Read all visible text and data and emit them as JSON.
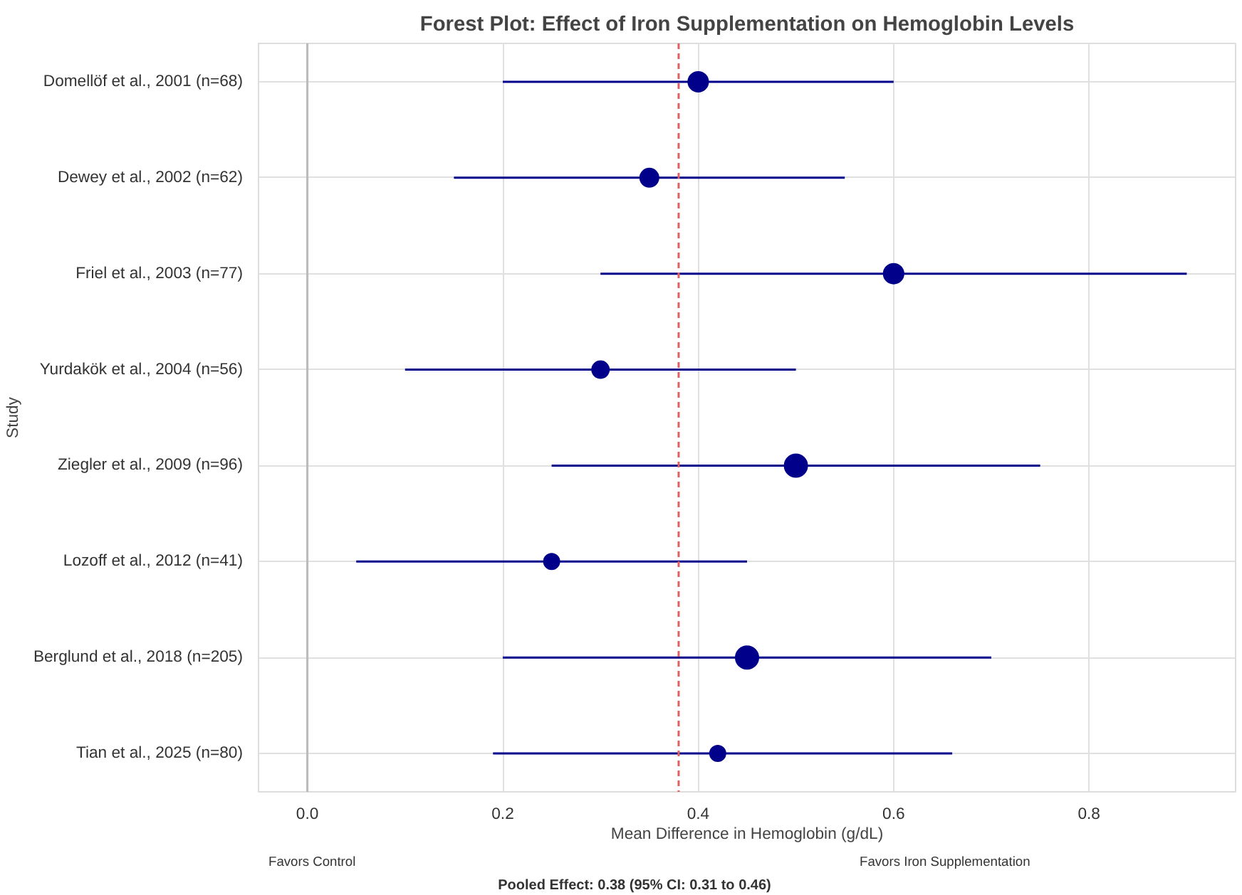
{
  "chart_data": {
    "type": "bubble",
    "orientation": "horizontal",
    "title": "Forest Plot: Effect of Iron Supplementation on Hemoglobin Levels",
    "xlabel": "Mean Difference in Hemoglobin (g/dL)",
    "ylabel": "Study",
    "categories": [
      "Domellöf et al., 2001 (n=68)",
      "Dewey et al., 2002 (n=62)",
      "Friel et al., 2003 (n=77)",
      "Yurdakök et al., 2004 (n=56)",
      "Ziegler et al., 2009 (n=96)",
      "Lozoff et al., 2012 (n=41)",
      "Berglund et al., 2018 (n=205)",
      "Tian et al., 2025 (n=80)"
    ],
    "series": [
      {
        "color": "#00008b",
        "values": [
          0.4,
          0.35,
          0.6,
          0.3,
          0.5,
          0.25,
          0.45,
          0.42
        ],
        "sizes": [
          0.77,
          0.66,
          0.77,
          0.56,
          1,
          0.47,
          1,
          0.47
        ],
        "errors": [
          [
            0.2,
            0.6
          ],
          [
            0.15,
            0.55
          ],
          [
            0.3,
            0.9
          ],
          [
            0.1,
            0.5
          ],
          [
            0.25,
            0.75
          ],
          [
            0.05,
            0.45
          ],
          [
            0.2,
            0.7
          ],
          [
            0.19,
            0.66
          ]
        ]
      }
    ],
    "xlim": [
      -0.05,
      0.95
    ],
    "xticks": [
      {
        "value": 0,
        "label": "0.0"
      },
      0.2,
      0.4,
      0.6,
      0.8
    ],
    "ref_lines": [
      {
        "axis": "x",
        "value": 0,
        "color": "#bbbbbb",
        "line_style": "solid"
      },
      {
        "axis": "x",
        "value": 0.38,
        "color": "#e06060",
        "line_style": "dashed"
      }
    ],
    "annotations": [
      "Favors Control",
      "Favors Iron Supplementation",
      "Pooled Effect: 0.38 (95% CI: 0.31 to 0.46)"
    ],
    "grid": true
  }
}
